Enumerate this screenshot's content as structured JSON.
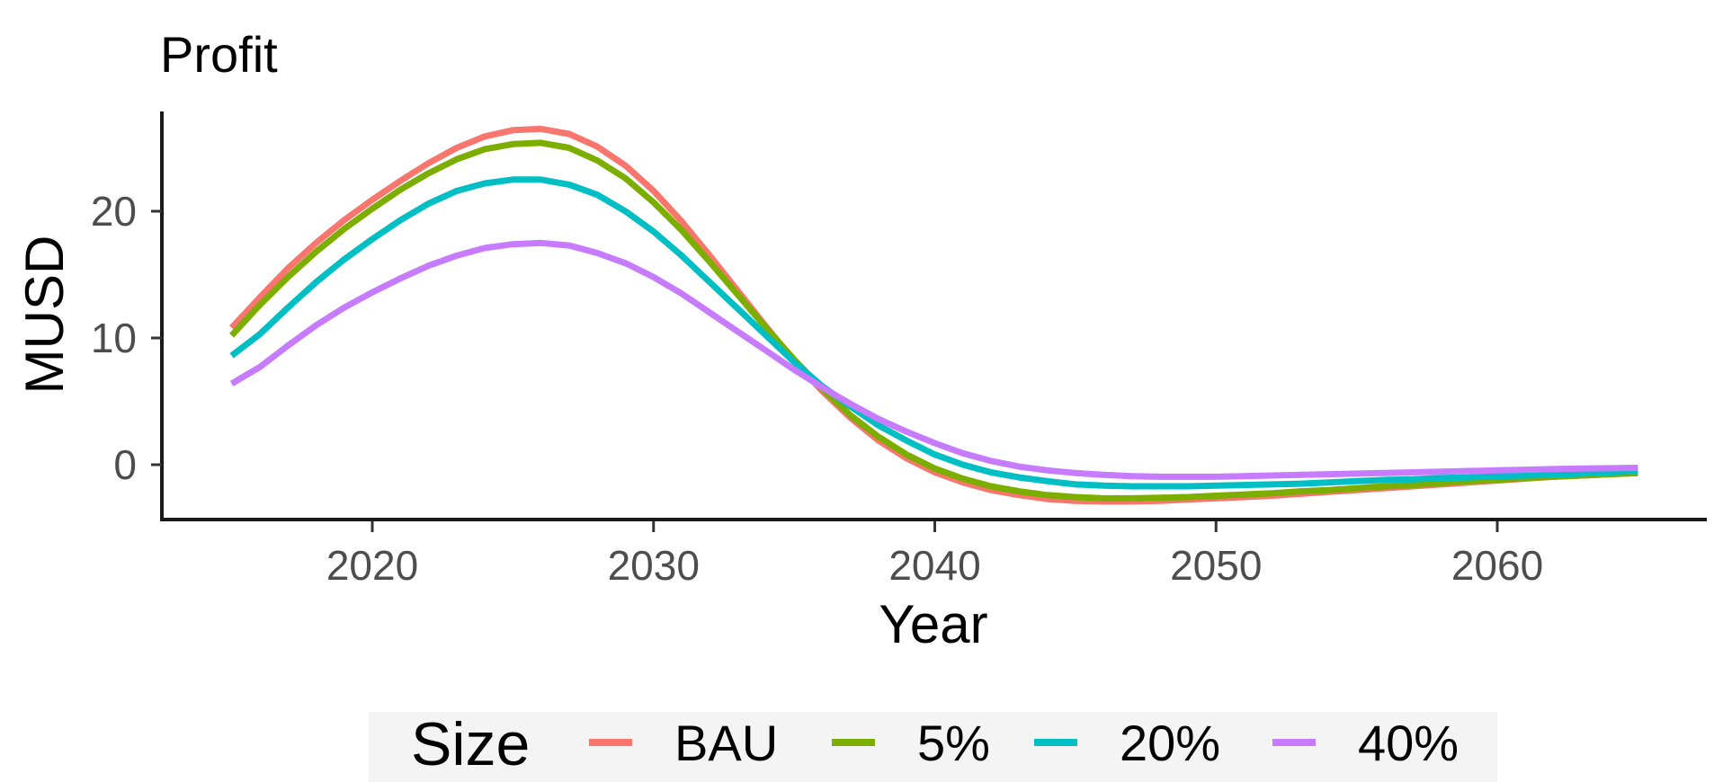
{
  "chart_data": {
    "type": "line",
    "title": "Profit",
    "xlabel": "Year",
    "ylabel": "MUSD",
    "xlim": [
      2015,
      2065
    ],
    "ylim": [
      -4.2,
      27.8
    ],
    "x_ticks": [
      2020,
      2030,
      2040,
      2050,
      2060
    ],
    "y_ticks": [
      0,
      10,
      20
    ],
    "grid": false,
    "legend": {
      "title": "Size",
      "position": "bottom"
    },
    "x": [
      2015,
      2016,
      2017,
      2018,
      2019,
      2020,
      2021,
      2022,
      2023,
      2024,
      2025,
      2026,
      2027,
      2028,
      2029,
      2030,
      2031,
      2032,
      2033,
      2034,
      2035,
      2036,
      2037,
      2038,
      2039,
      2040,
      2041,
      2042,
      2043,
      2044,
      2045,
      2046,
      2047,
      2048,
      2049,
      2050,
      2051,
      2052,
      2053,
      2054,
      2055,
      2056,
      2057,
      2058,
      2059,
      2060,
      2061,
      2062,
      2063,
      2064,
      2065
    ],
    "series": [
      {
        "name": "BAU",
        "color": "#F8766D",
        "values": [
          10.8,
          13.2,
          15.5,
          17.5,
          19.3,
          20.9,
          22.4,
          23.8,
          25.0,
          25.9,
          26.4,
          26.5,
          26.1,
          25.1,
          23.6,
          21.6,
          19.2,
          16.5,
          13.7,
          10.9,
          8.2,
          5.8,
          3.7,
          1.9,
          0.5,
          -0.6,
          -1.4,
          -2.0,
          -2.4,
          -2.7,
          -2.85,
          -2.9,
          -2.9,
          -2.85,
          -2.75,
          -2.65,
          -2.55,
          -2.45,
          -2.3,
          -2.15,
          -2.0,
          -1.85,
          -1.7,
          -1.55,
          -1.4,
          -1.25,
          -1.1,
          -0.95,
          -0.85,
          -0.75,
          -0.65
        ]
      },
      {
        "name": "5%",
        "color": "#7CAE00",
        "values": [
          10.2,
          12.6,
          14.8,
          16.8,
          18.6,
          20.2,
          21.7,
          23.0,
          24.1,
          24.9,
          25.3,
          25.4,
          25.0,
          24.0,
          22.6,
          20.7,
          18.5,
          16.0,
          13.4,
          10.8,
          8.3,
          6.0,
          3.9,
          2.2,
          0.8,
          -0.3,
          -1.1,
          -1.7,
          -2.1,
          -2.4,
          -2.55,
          -2.65,
          -2.65,
          -2.6,
          -2.55,
          -2.45,
          -2.35,
          -2.25,
          -2.1,
          -2.0,
          -1.85,
          -1.7,
          -1.6,
          -1.45,
          -1.3,
          -1.2,
          -1.05,
          -0.95,
          -0.85,
          -0.75,
          -0.65
        ]
      },
      {
        "name": "20%",
        "color": "#00BFC4",
        "values": [
          8.6,
          10.3,
          12.4,
          14.4,
          16.2,
          17.8,
          19.3,
          20.6,
          21.6,
          22.2,
          22.5,
          22.5,
          22.1,
          21.3,
          20.0,
          18.4,
          16.5,
          14.4,
          12.3,
          10.2,
          8.1,
          6.2,
          4.6,
          3.1,
          1.9,
          0.8,
          0.0,
          -0.6,
          -1.0,
          -1.3,
          -1.55,
          -1.65,
          -1.7,
          -1.7,
          -1.7,
          -1.65,
          -1.6,
          -1.55,
          -1.5,
          -1.4,
          -1.3,
          -1.2,
          -1.15,
          -1.05,
          -1.0,
          -0.9,
          -0.85,
          -0.8,
          -0.7,
          -0.6,
          -0.5
        ]
      },
      {
        "name": "40%",
        "color": "#C77CFF",
        "values": [
          6.4,
          7.7,
          9.4,
          11.0,
          12.4,
          13.6,
          14.7,
          15.7,
          16.5,
          17.1,
          17.4,
          17.5,
          17.3,
          16.7,
          15.9,
          14.8,
          13.5,
          12.0,
          10.5,
          9.0,
          7.5,
          6.1,
          4.8,
          3.6,
          2.6,
          1.7,
          0.9,
          0.3,
          -0.15,
          -0.45,
          -0.65,
          -0.8,
          -0.9,
          -0.95,
          -0.95,
          -0.95,
          -0.9,
          -0.85,
          -0.8,
          -0.75,
          -0.7,
          -0.65,
          -0.6,
          -0.55,
          -0.5,
          -0.45,
          -0.4,
          -0.35,
          -0.3,
          -0.28,
          -0.25
        ]
      }
    ]
  }
}
